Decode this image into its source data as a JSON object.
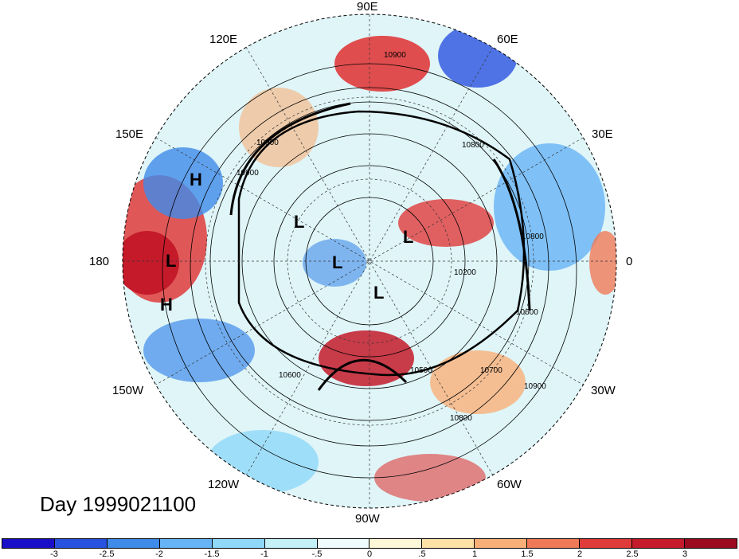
{
  "title": "Day 1999021100",
  "longitude_labels": {
    "lon_90e": "90E",
    "lon_60e": "60E",
    "lon_30e": "30E",
    "lon_0": "0",
    "lon_30w": "30W",
    "lon_60w": "60W",
    "lon_90w": "90W",
    "lon_120w": "120W",
    "lon_150w": "150W",
    "lon_180": "180",
    "lon_150e": "150E",
    "lon_120e": "120E"
  },
  "pressure_systems": {
    "h1": "H",
    "h2": "H",
    "l1": "L",
    "l2": "L",
    "l3": "L",
    "l4": "L",
    "l5": "L"
  },
  "contour_labels": {
    "c1": "10900",
    "c2": "10900",
    "c3": "10900",
    "c4": "10800",
    "c5": "10600",
    "c6": "10500",
    "c7": "10700",
    "c8": "10800",
    "c9": "10900",
    "c10": "10600",
    "c11": "10200",
    "c12": "10800"
  },
  "colorbar": {
    "colors": [
      "#1a0fc8",
      "#2a52e0",
      "#3f8bea",
      "#66b3f5",
      "#8fd8f8",
      "#c4f0f8",
      "#eefcfe",
      "#fdf8d8",
      "#fde2a8",
      "#f9b078",
      "#f07a58",
      "#e03b3b",
      "#c41a2a",
      "#9b0a1e"
    ],
    "ticks": [
      "-3",
      "-2.5",
      "-2",
      "-1.5",
      "-1",
      "-.5",
      "0",
      ".5",
      "1",
      "1.5",
      "2",
      "2.5",
      "3"
    ]
  },
  "colors": {
    "ocean_land_base": "#cfeef4",
    "warm": "#e03b3b",
    "cool": "#3f8bea"
  }
}
